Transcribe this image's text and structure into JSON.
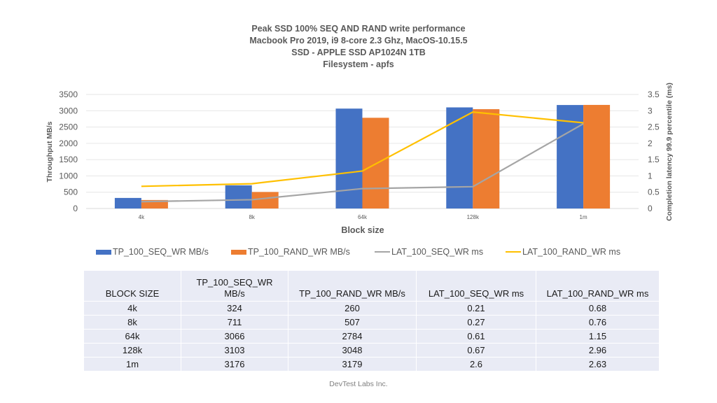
{
  "chart_data": {
    "type": "bar+line",
    "title": [
      "Peak SSD 100% SEQ AND RAND write performance",
      "Macbook Pro 2019, i9 8-core 2.3 Ghz, MacOS-10.15.5",
      "SSD - APPLE SSD AP1024N 1TB",
      "Filesystem - apfs"
    ],
    "categories": [
      "4k",
      "8k",
      "64k",
      "128k",
      "1m"
    ],
    "xlabel": "Block size",
    "ylabel": "Throughput MB/s",
    "y2label": "Completion latency 99.9 percentile (ms)",
    "ylim": [
      0,
      3500
    ],
    "y2lim": [
      0,
      3.5
    ],
    "yticks": [
      "0",
      "500",
      "1000",
      "1500",
      "2000",
      "2500",
      "3000",
      "3500"
    ],
    "y2ticks": [
      "0",
      "0.5",
      "1",
      "1.5",
      "2",
      "2.5",
      "3",
      "3.5"
    ],
    "grid": true,
    "legend_position": "bottom",
    "series": [
      {
        "name": "TP_100_SEQ_WR MB/s",
        "type": "bar",
        "axis": "left",
        "color": "#4472c4",
        "values": [
          324,
          711,
          3066,
          3103,
          3176
        ]
      },
      {
        "name": "TP_100_RAND_WR MB/s",
        "type": "bar",
        "axis": "left",
        "color": "#ed7d31",
        "values": [
          260,
          507,
          2784,
          3048,
          3179
        ]
      },
      {
        "name": "LAT_100_SEQ_WR ms",
        "type": "line",
        "axis": "right",
        "color": "#a5a5a5",
        "values": [
          0.21,
          0.27,
          0.61,
          0.67,
          2.6
        ]
      },
      {
        "name": "LAT_100_RAND_WR ms",
        "type": "line",
        "axis": "right",
        "color": "#ffc000",
        "values": [
          0.68,
          0.76,
          1.15,
          2.96,
          2.63
        ]
      }
    ]
  },
  "table": {
    "headers": [
      "BLOCK SIZE",
      "TP_100_SEQ_WR MB/s",
      "TP_100_RAND_WR MB/s",
      "LAT_100_SEQ_WR ms",
      "LAT_100_RAND_WR ms"
    ],
    "header_tp_seq_line1": "TP_100_SEQ_WR",
    "header_tp_seq_line2": "MB/s",
    "rows": [
      [
        "4k",
        "324",
        "260",
        "0.21",
        "0.68"
      ],
      [
        "8k",
        "711",
        "507",
        "0.27",
        "0.76"
      ],
      [
        "64k",
        "3066",
        "2784",
        "0.61",
        "1.15"
      ],
      [
        "128k",
        "3103",
        "3048",
        "0.67",
        "2.96"
      ],
      [
        "1m",
        "3176",
        "3179",
        "2.6",
        "2.63"
      ]
    ]
  },
  "footer": "DevTest Labs Inc."
}
